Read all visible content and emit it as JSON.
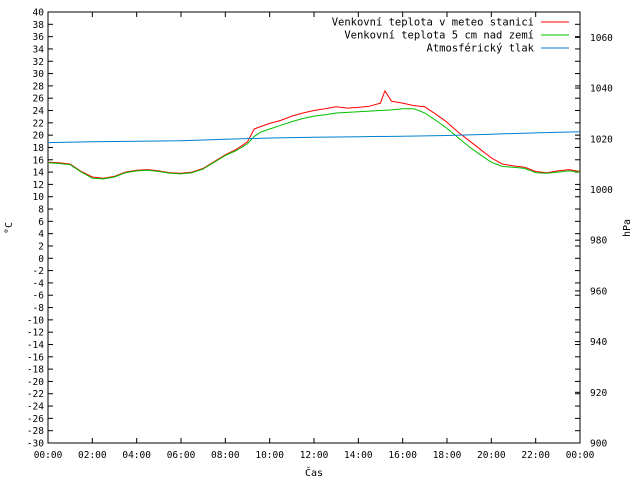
{
  "chart_data": {
    "type": "line",
    "xlabel": "Čas",
    "ylabel_left": "°C",
    "ylabel_right": "hPa",
    "x_ticks": [
      "00:00",
      "02:00",
      "04:00",
      "06:00",
      "08:00",
      "10:00",
      "12:00",
      "14:00",
      "16:00",
      "18:00",
      "20:00",
      "22:00",
      "00:00"
    ],
    "x_range_hours": [
      0,
      24
    ],
    "y_left_range": [
      -30,
      40
    ],
    "y_left_ticks": [
      40,
      38,
      36,
      34,
      32,
      30,
      28,
      26,
      24,
      22,
      20,
      18,
      16,
      14,
      12,
      10,
      8,
      6,
      4,
      2,
      0,
      -2,
      -4,
      -6,
      -8,
      -10,
      -12,
      -14,
      -16,
      -18,
      -20,
      -22,
      -24,
      -26,
      -28,
      -30
    ],
    "y_right_range": [
      900,
      1070
    ],
    "y_right_ticks": [
      1060,
      1040,
      1020,
      1000,
      980,
      960,
      940,
      920,
      900
    ],
    "grid": false,
    "legend_position": "top-right",
    "series": [
      {
        "name": "Venkovní teplota v meteo stanici",
        "color": "#ff0000",
        "axis": "left",
        "points": [
          [
            0,
            15.6
          ],
          [
            0.5,
            15.5
          ],
          [
            1,
            15.3
          ],
          [
            1.5,
            14.1
          ],
          [
            2,
            13.2
          ],
          [
            2.5,
            13.0
          ],
          [
            3,
            13.3
          ],
          [
            3.5,
            14.0
          ],
          [
            4,
            14.3
          ],
          [
            4.5,
            14.4
          ],
          [
            5,
            14.2
          ],
          [
            5.5,
            13.9
          ],
          [
            6,
            13.8
          ],
          [
            6.5,
            14.0
          ],
          [
            7,
            14.6
          ],
          [
            7.5,
            15.7
          ],
          [
            8,
            16.8
          ],
          [
            8.5,
            17.7
          ],
          [
            9,
            18.9
          ],
          [
            9.3,
            21.0
          ],
          [
            9.6,
            21.4
          ],
          [
            10,
            21.9
          ],
          [
            10.5,
            22.4
          ],
          [
            11,
            23.1
          ],
          [
            11.5,
            23.6
          ],
          [
            12,
            24.0
          ],
          [
            12.5,
            24.3
          ],
          [
            13,
            24.6
          ],
          [
            13.5,
            24.4
          ],
          [
            14,
            24.5
          ],
          [
            14.5,
            24.7
          ],
          [
            15,
            25.2
          ],
          [
            15.2,
            27.2
          ],
          [
            15.5,
            25.5
          ],
          [
            16,
            25.2
          ],
          [
            16.5,
            24.8
          ],
          [
            17,
            24.6
          ],
          [
            17.5,
            23.4
          ],
          [
            18,
            22.1
          ],
          [
            18.5,
            20.5
          ],
          [
            19,
            19.1
          ],
          [
            19.5,
            17.7
          ],
          [
            20,
            16.3
          ],
          [
            20.5,
            15.3
          ],
          [
            21,
            15.0
          ],
          [
            21.5,
            14.8
          ],
          [
            22,
            14.1
          ],
          [
            22.5,
            13.9
          ],
          [
            23,
            14.2
          ],
          [
            23.5,
            14.4
          ],
          [
            24,
            14.1
          ]
        ]
      },
      {
        "name": "Venkovní teplota 5 cm nad zemí",
        "color": "#00c000",
        "axis": "left",
        "points": [
          [
            0,
            15.5
          ],
          [
            0.5,
            15.4
          ],
          [
            1,
            15.2
          ],
          [
            1.5,
            14.0
          ],
          [
            2,
            13.0
          ],
          [
            2.5,
            12.9
          ],
          [
            3,
            13.2
          ],
          [
            3.5,
            13.9
          ],
          [
            4,
            14.2
          ],
          [
            4.5,
            14.3
          ],
          [
            5,
            14.1
          ],
          [
            5.5,
            13.8
          ],
          [
            6,
            13.7
          ],
          [
            6.5,
            13.9
          ],
          [
            7,
            14.5
          ],
          [
            7.5,
            15.6
          ],
          [
            8,
            16.7
          ],
          [
            8.5,
            17.5
          ],
          [
            9,
            18.6
          ],
          [
            9.3,
            19.8
          ],
          [
            9.6,
            20.5
          ],
          [
            10,
            21.0
          ],
          [
            10.5,
            21.6
          ],
          [
            11,
            22.2
          ],
          [
            11.5,
            22.7
          ],
          [
            12,
            23.1
          ],
          [
            12.5,
            23.3
          ],
          [
            13,
            23.6
          ],
          [
            13.5,
            23.7
          ],
          [
            14,
            23.8
          ],
          [
            14.5,
            23.9
          ],
          [
            15,
            24.0
          ],
          [
            15.5,
            24.1
          ],
          [
            16,
            24.3
          ],
          [
            16.5,
            24.3
          ],
          [
            17,
            23.6
          ],
          [
            17.5,
            22.4
          ],
          [
            18,
            21.1
          ],
          [
            18.5,
            19.6
          ],
          [
            19,
            18.1
          ],
          [
            19.5,
            16.8
          ],
          [
            20,
            15.6
          ],
          [
            20.5,
            14.9
          ],
          [
            21,
            14.8
          ],
          [
            21.5,
            14.6
          ],
          [
            22,
            13.9
          ],
          [
            22.5,
            13.8
          ],
          [
            23,
            14.0
          ],
          [
            23.5,
            14.2
          ],
          [
            24,
            14.0
          ]
        ]
      },
      {
        "name": "Atmosférický tlak",
        "color": "#0080d0",
        "axis": "right",
        "points": [
          [
            0,
            1018.5
          ],
          [
            2,
            1018.8
          ],
          [
            4,
            1019.0
          ],
          [
            6,
            1019.2
          ],
          [
            8,
            1019.8
          ],
          [
            10,
            1020.3
          ],
          [
            12,
            1020.6
          ],
          [
            14,
            1020.8
          ],
          [
            16,
            1021.0
          ],
          [
            18,
            1021.3
          ],
          [
            20,
            1021.8
          ],
          [
            22,
            1022.3
          ],
          [
            24,
            1022.8
          ]
        ]
      }
    ]
  }
}
